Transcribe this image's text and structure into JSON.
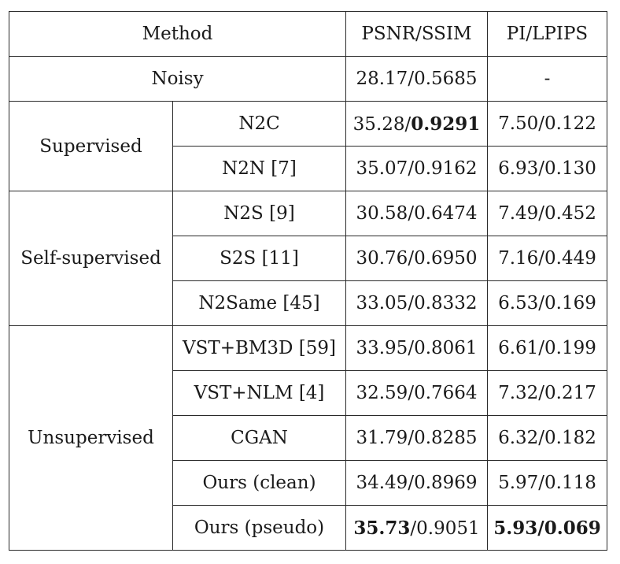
{
  "header": {
    "method": "Method",
    "psnr_ssim": "PSNR/SSIM",
    "pi_lpips": "PI/LPIPS"
  },
  "noisy": {
    "label": "Noisy",
    "psnr": "28.17",
    "ssim": "0.5685",
    "pi_lpips": "-"
  },
  "groups": {
    "supervised": "Supervised",
    "self_supervised": "Self-supervised",
    "unsupervised": "Unsupervised"
  },
  "rows": [
    {
      "method": "N2C",
      "psnr": "35.28",
      "ssim": "0.9291",
      "pi": "7.50",
      "lpips": "0.122"
    },
    {
      "method": "N2N [7]",
      "psnr": "35.07",
      "ssim": "0.9162",
      "pi": "6.93",
      "lpips": "0.130"
    },
    {
      "method": "N2S [9]",
      "psnr": "30.58",
      "ssim": "0.6474",
      "pi": "7.49",
      "lpips": "0.452"
    },
    {
      "method": "S2S [11]",
      "psnr": "30.76",
      "ssim": "0.6950",
      "pi": "7.16",
      "lpips": "0.449"
    },
    {
      "method": "N2Same [45]",
      "psnr": "33.05",
      "ssim": "0.8332",
      "pi": "6.53",
      "lpips": "0.169"
    },
    {
      "method": "VST+BM3D [59]",
      "psnr": "33.95",
      "ssim": "0.8061",
      "pi": "6.61",
      "lpips": "0.199"
    },
    {
      "method": "VST+NLM [4]",
      "psnr": "32.59",
      "ssim": "0.7664",
      "pi": "7.32",
      "lpips": "0.217"
    },
    {
      "method": "CGAN",
      "psnr": "31.79",
      "ssim": "0.8285",
      "pi": "6.32",
      "lpips": "0.182"
    },
    {
      "method": "Ours (clean)",
      "psnr": "34.49",
      "ssim": "0.8969",
      "pi": "5.97",
      "lpips": "0.118"
    },
    {
      "method": "Ours (pseudo)",
      "psnr": "35.73",
      "ssim": "0.9051",
      "pi": "5.93",
      "lpips": "0.069"
    }
  ],
  "sep": "/"
}
